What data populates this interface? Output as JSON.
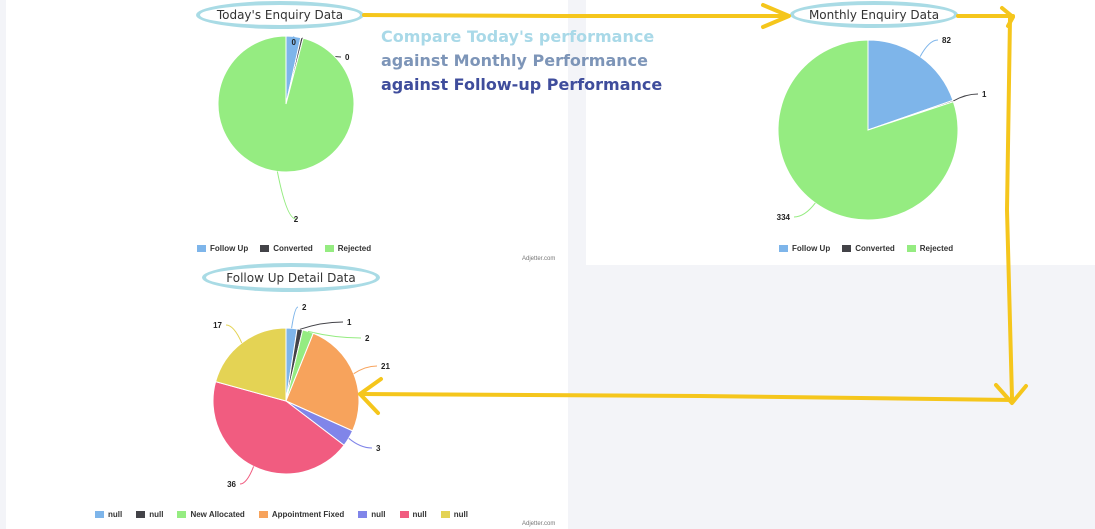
{
  "titles": {
    "today": "Today's Enquiry Data",
    "monthly": "Monthly Enquiry Data",
    "followup": "Follow Up Detail Data"
  },
  "note": {
    "line1": "Compare Today's performance",
    "line2": "against Monthly Performance",
    "line3": "against Follow-up Performance",
    "colors": [
      "#a9d9e8",
      "#7d95b8",
      "#3f4d9c"
    ]
  },
  "credit": "Adjetter.com",
  "chart_data": [
    {
      "type": "pie",
      "title": "Today's Enquiry Data",
      "slices": [
        {
          "label": "Follow Up",
          "value": 0,
          "display": "0",
          "color": "#7eb5ea"
        },
        {
          "label": "Converted",
          "value": 0,
          "display": "0",
          "color": "#434348"
        },
        {
          "label": "Rejected",
          "value": 2,
          "display": "2",
          "color": "#95ec81"
        }
      ],
      "legend": [
        "Follow Up",
        "Converted",
        "Rejected"
      ],
      "legend_position": "bottom"
    },
    {
      "type": "pie",
      "title": "Monthly Enquiry Data",
      "slices": [
        {
          "label": "Follow Up",
          "value": 82,
          "display": "82",
          "color": "#7eb5ea"
        },
        {
          "label": "Converted",
          "value": 1,
          "display": "1",
          "color": "#434348"
        },
        {
          "label": "Rejected",
          "value": 334,
          "display": "334",
          "color": "#95ec81"
        }
      ],
      "legend": [
        "Follow Up",
        "Converted",
        "Rejected"
      ],
      "legend_position": "bottom"
    },
    {
      "type": "pie",
      "title": "Follow Up Detail Data",
      "slices": [
        {
          "label": "null",
          "value": 2,
          "display": "2",
          "color": "#7eb5ea"
        },
        {
          "label": "null",
          "value": 1,
          "display": "1",
          "color": "#434348"
        },
        {
          "label": "New Allocated",
          "value": 2,
          "display": "2",
          "color": "#95ec81"
        },
        {
          "label": "Appointment Fixed",
          "value": 21,
          "display": "21",
          "color": "#f7a35c"
        },
        {
          "label": "null",
          "value": 3,
          "display": "3",
          "color": "#8085e9"
        },
        {
          "label": "null",
          "value": 36,
          "display": "36",
          "color": "#f15c80"
        },
        {
          "label": "null",
          "value": 17,
          "display": "17",
          "color": "#e4d354"
        }
      ],
      "legend": [
        "null",
        "null",
        "New Allocated",
        "Appointment Fixed",
        "null",
        "null",
        "null"
      ],
      "legend_position": "bottom"
    }
  ]
}
